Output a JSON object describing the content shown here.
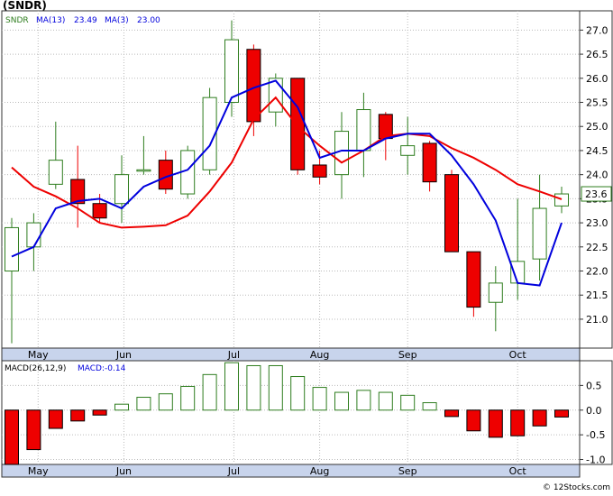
{
  "title": "(SNDR)",
  "watermark": "© 12Stocks.com",
  "legend": {
    "ticker": "SNDR",
    "ma13_label": "MA(13)",
    "ma13_value": "23.49",
    "ma3_label": "MA(3)",
    "ma3_value": "23.00"
  },
  "last_price_label": "23.6",
  "macd_legend": {
    "label": "MACD(26,12,9)",
    "value_label": "MACD:-0.14"
  },
  "colors": {
    "up": "#2e7d1e",
    "down": "#ee0000",
    "ma13": "#ee0000",
    "ma3": "#0000dd",
    "axis_band": "#c8d4ec",
    "grid": "#bbbbbb"
  },
  "chart_data": [
    {
      "type": "candlestick",
      "price_axis": {
        "ylim": [
          20.4,
          27.4
        ],
        "ticks": [
          "21.0",
          "21.5",
          "22.0",
          "22.5",
          "23.0",
          "23.5",
          "24.0",
          "24.5",
          "25.0",
          "25.5",
          "26.0",
          "26.5",
          "27.0"
        ]
      },
      "month_labels": [
        "May",
        "Jun",
        "Jul",
        "Aug",
        "Sep",
        "Oct"
      ],
      "month_positions": [
        1.2,
        5.1,
        10.1,
        14.0,
        18.0,
        23.0
      ],
      "candles": [
        {
          "o": 22.0,
          "h": 23.1,
          "l": 20.5,
          "c": 22.9
        },
        {
          "o": 22.5,
          "h": 23.2,
          "l": 22.0,
          "c": 23.0
        },
        {
          "o": 23.8,
          "h": 25.1,
          "l": 23.7,
          "c": 24.3
        },
        {
          "o": 23.9,
          "h": 24.6,
          "l": 22.9,
          "c": 23.4
        },
        {
          "o": 23.4,
          "h": 23.6,
          "l": 23.0,
          "c": 23.1
        },
        {
          "o": 23.4,
          "h": 24.4,
          "l": 23.0,
          "c": 24.0
        },
        {
          "o": 24.1,
          "h": 24.8,
          "l": 24.0,
          "c": 24.1
        },
        {
          "o": 24.3,
          "h": 24.5,
          "l": 23.6,
          "c": 23.7
        },
        {
          "o": 23.6,
          "h": 24.6,
          "l": 23.5,
          "c": 24.5
        },
        {
          "o": 24.1,
          "h": 25.8,
          "l": 24.0,
          "c": 25.6
        },
        {
          "o": 25.5,
          "h": 27.2,
          "l": 25.2,
          "c": 26.8
        },
        {
          "o": 26.6,
          "h": 26.7,
          "l": 24.8,
          "c": 25.1
        },
        {
          "o": 25.3,
          "h": 26.1,
          "l": 25.0,
          "c": 26.0
        },
        {
          "o": 26.0,
          "h": 26.0,
          "l": 24.0,
          "c": 24.1
        },
        {
          "o": 24.2,
          "h": 24.5,
          "l": 23.8,
          "c": 23.95
        },
        {
          "o": 24.0,
          "h": 25.3,
          "l": 23.5,
          "c": 24.9
        },
        {
          "o": 24.5,
          "h": 25.7,
          "l": 23.95,
          "c": 25.35
        },
        {
          "o": 25.25,
          "h": 25.3,
          "l": 24.3,
          "c": 24.75
        },
        {
          "o": 24.4,
          "h": 25.2,
          "l": 24.0,
          "c": 24.6
        },
        {
          "o": 24.65,
          "h": 24.7,
          "l": 23.65,
          "c": 23.85
        },
        {
          "o": 24.0,
          "h": 24.1,
          "l": 22.4,
          "c": 22.4
        },
        {
          "o": 22.4,
          "h": 22.4,
          "l": 21.05,
          "c": 21.25
        },
        {
          "o": 21.35,
          "h": 22.1,
          "l": 20.75,
          "c": 21.75
        },
        {
          "o": 21.75,
          "h": 23.5,
          "l": 21.4,
          "c": 22.2
        },
        {
          "o": 22.25,
          "h": 24.0,
          "l": 21.8,
          "c": 23.3
        },
        {
          "o": 23.35,
          "h": 23.75,
          "l": 23.2,
          "c": 23.6
        }
      ],
      "series": [
        {
          "name": "MA(13)",
          "values": [
            24.15,
            23.75,
            23.55,
            23.3,
            23.0,
            22.9,
            22.92,
            22.95,
            23.15,
            23.65,
            24.25,
            25.15,
            25.6,
            25.0,
            24.6,
            24.25,
            24.5,
            24.8,
            24.85,
            24.8,
            24.55,
            24.35,
            24.1,
            23.8,
            23.65,
            23.49
          ]
        },
        {
          "name": "MA(3)",
          "values": [
            22.3,
            22.5,
            23.3,
            23.45,
            23.5,
            23.3,
            23.75,
            23.95,
            24.1,
            24.6,
            25.6,
            25.8,
            25.95,
            25.4,
            24.35,
            24.5,
            24.5,
            24.75,
            24.85,
            24.85,
            24.4,
            23.8,
            23.05,
            21.75,
            21.7,
            23.0
          ]
        }
      ]
    },
    {
      "type": "bar",
      "name": "MACD(26,12,9)",
      "ylim": [
        -1.1,
        1.0
      ],
      "ticks": [
        "0.5",
        "0.0",
        "-0.5",
        "-1.0"
      ],
      "values": [
        -1.1,
        -0.8,
        -0.37,
        -0.22,
        -0.1,
        0.12,
        0.26,
        0.33,
        0.48,
        0.72,
        0.96,
        0.9,
        0.9,
        0.68,
        0.46,
        0.36,
        0.4,
        0.36,
        0.3,
        0.15,
        -0.13,
        -0.42,
        -0.55,
        -0.52,
        -0.32,
        -0.14
      ]
    }
  ]
}
